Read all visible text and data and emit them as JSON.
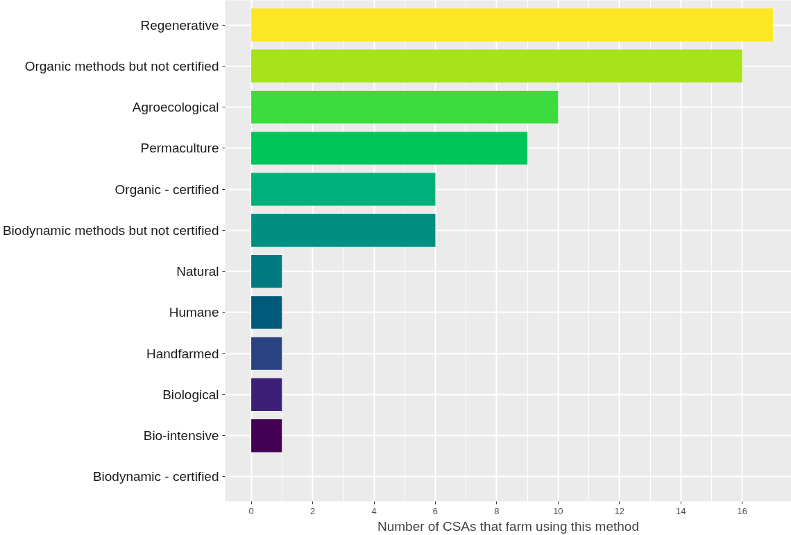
{
  "chart_data": {
    "type": "bar",
    "orientation": "horizontal",
    "xlabel": "Number of CSAs that farm using this method",
    "categories": [
      "Regenerative",
      "Organic methods but not certified",
      "Agroecological",
      "Permaculture",
      "Organic - certified",
      "Biodynamic methods but not certified",
      "Natural",
      "Humane",
      "Handfarmed",
      "Biological",
      "Bio-intensive",
      "Biodynamic - certified"
    ],
    "values": [
      17,
      16,
      10,
      9,
      6,
      6,
      1,
      1,
      1,
      1,
      1,
      0
    ],
    "colors": [
      "#fde725",
      "#a6e31a",
      "#3bdc3b",
      "#00c65a",
      "#00b07a",
      "#008f80",
      "#007a7e",
      "#005a7a",
      "#2a4280",
      "#3c2078",
      "#440154",
      "#440154"
    ],
    "xlim": [
      -0.85,
      17.6
    ],
    "xticks": [
      0,
      2,
      4,
      6,
      8,
      10,
      12,
      14,
      16
    ],
    "grid": true
  }
}
